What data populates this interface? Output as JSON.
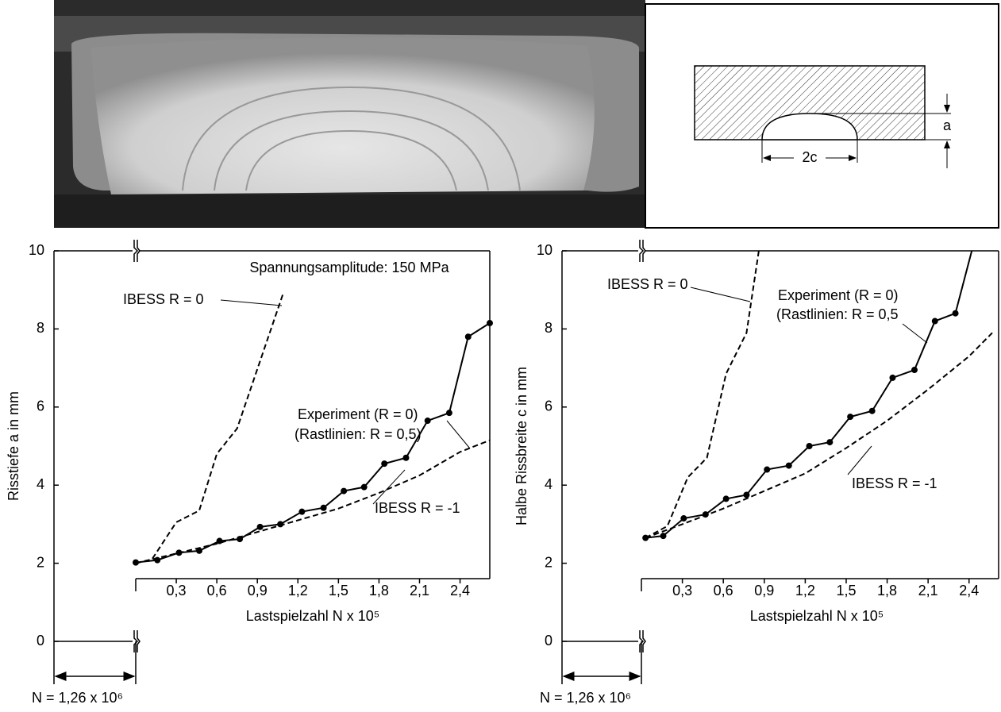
{
  "chart_data": [
    {
      "type": "line",
      "x_label": "Lastspielzahl N x 10⁵",
      "y_label": "Risstiefe a in mm",
      "origin_label": "N = 1,26 x 10⁶",
      "xlim": [
        0,
        2.62
      ],
      "ylim": [
        0,
        10
      ],
      "xticks": [
        {
          "value": 0.3,
          "label": "0,3"
        },
        {
          "value": 0.6,
          "label": "0,6"
        },
        {
          "value": 0.9,
          "label": "0,9"
        },
        {
          "value": 1.2,
          "label": "1,2"
        },
        {
          "value": 1.5,
          "label": "1,5"
        },
        {
          "value": 1.8,
          "label": "1,8"
        },
        {
          "value": 2.1,
          "label": "2,1"
        },
        {
          "value": 2.4,
          "label": "2,4"
        }
      ],
      "yticks": [
        0,
        2,
        4,
        6,
        8,
        10
      ],
      "annotations": [
        "Spannungsamplitude: 150 MPa",
        "IBESS R = 0",
        "Experiment (R = 0)",
        "(Rastlinien: R = 0,5)",
        "IBESS R = -1"
      ],
      "series": [
        {
          "color": "#000000",
          "style": "solid",
          "markers": true,
          "x": [
            0,
            0.16,
            0.32,
            0.47,
            0.62,
            0.77,
            0.92,
            1.07,
            1.23,
            1.39,
            1.54,
            1.69,
            1.84,
            2.0,
            2.16,
            2.32,
            2.46,
            2.62
          ],
          "values": [
            2.02,
            2.08,
            2.27,
            2.32,
            2.57,
            2.62,
            2.93,
            3.0,
            3.32,
            3.42,
            3.85,
            3.95,
            4.55,
            4.7,
            5.65,
            5.85,
            7.8,
            8.15
          ]
        },
        {
          "color": "#000000",
          "style": "dashed",
          "markers": false,
          "x": [
            0,
            0.12,
            0.3,
            0.47,
            0.6,
            0.75,
            1.09
          ],
          "values": [
            2.0,
            2.1,
            3.05,
            3.35,
            4.8,
            5.45,
            8.9
          ]
        },
        {
          "color": "#000000",
          "style": "dashed",
          "markers": false,
          "x": [
            0,
            0.3,
            0.6,
            0.9,
            1.2,
            1.5,
            1.8,
            2.1,
            2.4,
            2.62
          ],
          "values": [
            2.0,
            2.25,
            2.5,
            2.8,
            3.1,
            3.4,
            3.8,
            4.25,
            4.85,
            5.15
          ]
        }
      ]
    },
    {
      "type": "line",
      "x_label": "Lastspielzahl N x 10⁵",
      "y_label": "Halbe Rissbreite c in mm",
      "origin_label": "N = 1,26 x 10⁶",
      "xlim": [
        0,
        2.57
      ],
      "ylim": [
        0,
        10
      ],
      "xticks": [
        {
          "value": 0.3,
          "label": "0,3"
        },
        {
          "value": 0.6,
          "label": "0,6"
        },
        {
          "value": 0.9,
          "label": "0,9"
        },
        {
          "value": 1.2,
          "label": "1,2"
        },
        {
          "value": 1.5,
          "label": "1,5"
        },
        {
          "value": 1.8,
          "label": "1,8"
        },
        {
          "value": 2.1,
          "label": "2,1"
        },
        {
          "value": 2.4,
          "label": "2,4"
        }
      ],
      "yticks": [
        0,
        2,
        4,
        6,
        8,
        10
      ],
      "annotations": [
        "IBESS R = 0",
        "Experiment (R = 0)",
        "(Rastlinien: R = 0,5",
        "IBESS R = -1"
      ],
      "series": [
        {
          "color": "#000000",
          "style": "solid",
          "markers": true,
          "x": [
            0.03,
            0.16,
            0.31,
            0.47,
            0.62,
            0.77,
            0.92,
            1.08,
            1.23,
            1.38,
            1.53,
            1.69,
            1.84,
            2.0,
            2.15,
            2.3,
            2.42
          ],
          "values": [
            2.65,
            2.7,
            3.15,
            3.25,
            3.65,
            3.75,
            4.4,
            4.5,
            5.0,
            5.1,
            5.75,
            5.9,
            6.75,
            6.95,
            8.2,
            8.4,
            10
          ]
        },
        {
          "color": "#000000",
          "style": "dashed",
          "markers": false,
          "x": [
            0.03,
            0.19,
            0.34,
            0.48,
            0.62,
            0.77,
            0.86
          ],
          "values": [
            2.65,
            2.95,
            4.2,
            4.7,
            6.85,
            7.9,
            10
          ]
        },
        {
          "color": "#000000",
          "style": "dashed",
          "markers": false,
          "x": [
            0.03,
            0.3,
            0.6,
            0.9,
            1.2,
            1.5,
            1.8,
            2.1,
            2.4,
            2.57
          ],
          "values": [
            2.65,
            3.0,
            3.4,
            3.85,
            4.3,
            4.95,
            5.65,
            6.45,
            7.3,
            7.9
          ]
        }
      ]
    }
  ]
}
